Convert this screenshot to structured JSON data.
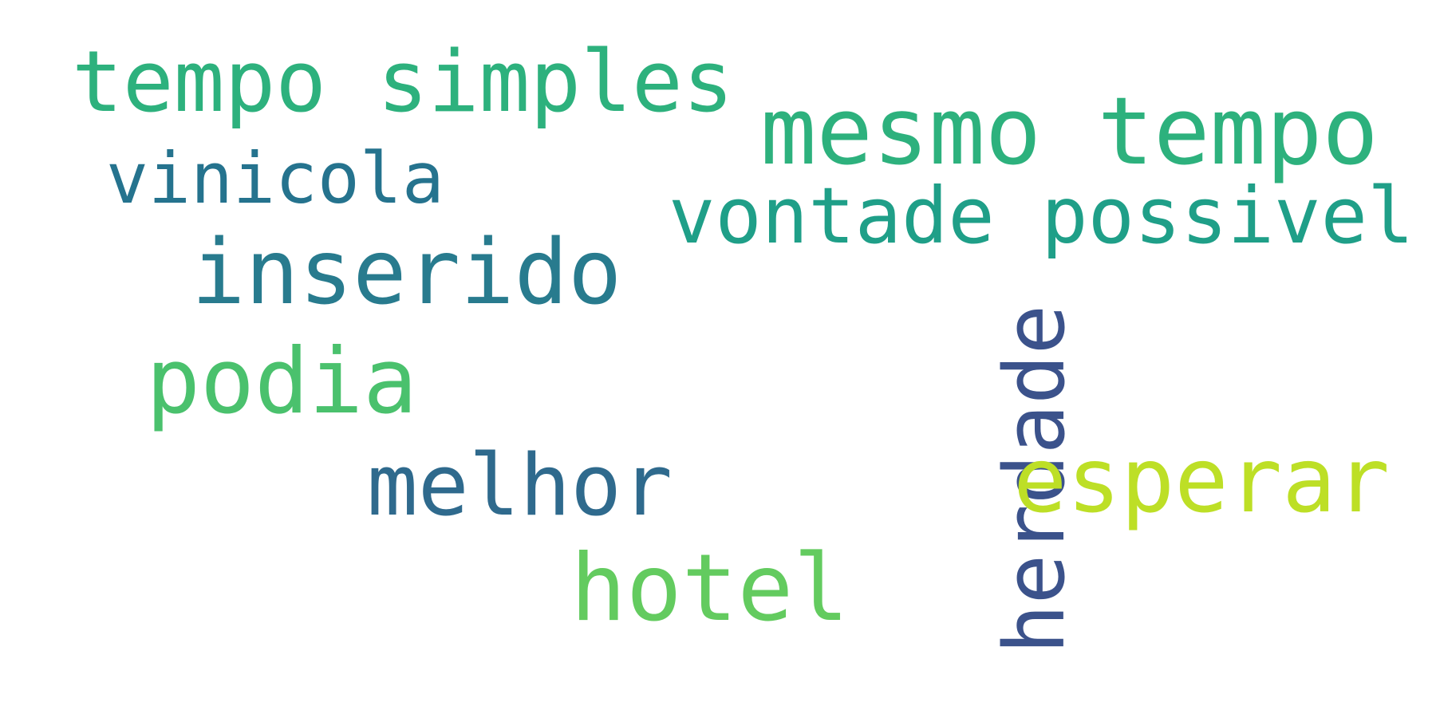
{
  "words": [
    {
      "text": "tempo simples",
      "color": "#2db17d"
    },
    {
      "text": "mesmo tempo",
      "color": "#2db17d"
    },
    {
      "text": "vinicola",
      "color": "#25738e"
    },
    {
      "text": "vontade possivel",
      "color": "#1f9f88"
    },
    {
      "text": "inserido",
      "color": "#287b8e"
    },
    {
      "text": "podia",
      "color": "#4ac16d"
    },
    {
      "text": "melhor",
      "color": "#2f6a8d"
    },
    {
      "text": "herdade",
      "color": "#3b528b"
    },
    {
      "text": "esperar",
      "color": "#bddf26"
    },
    {
      "text": "hotel",
      "color": "#63cb5f"
    }
  ]
}
